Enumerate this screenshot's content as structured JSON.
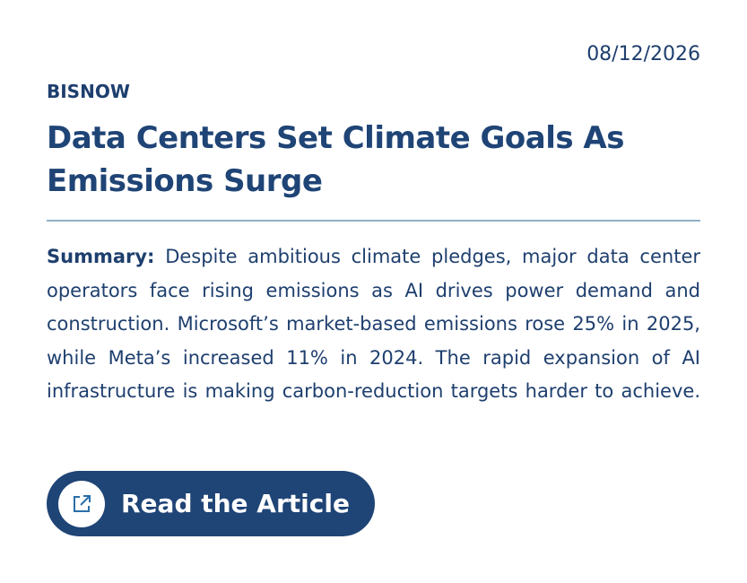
{
  "date": "08/12/2026",
  "source": "BISNOW",
  "title": "Data Centers Set Climate Goals As Emissions Surge",
  "summary": {
    "label": "Summary:",
    "text": "Despite ambitious climate pledges, major data center operators face rising emissions as AI drives power demand and construction. Microsoft’s market-based emissions rose 25% in 2025, while Meta’s increased 11% in 2024. The rapid expansion of AI infrastructure is making carbon-reduction targets harder to achieve."
  },
  "button": "Read the Article"
}
